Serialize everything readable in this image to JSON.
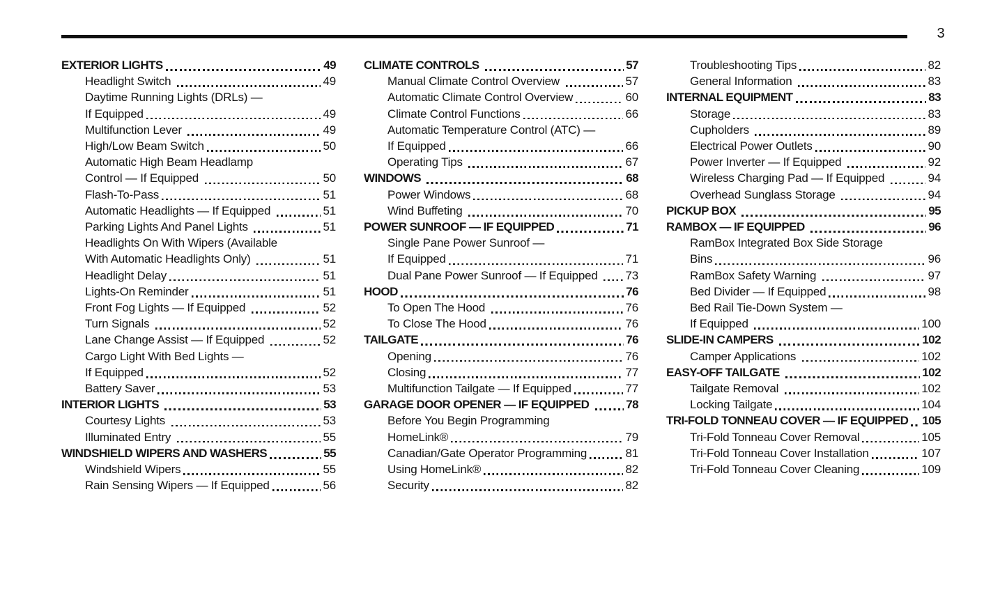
{
  "page": {
    "number": "3",
    "background_color": "#ffffff",
    "text_color": "#161616",
    "rule_color": "#111111"
  },
  "toc": {
    "columns": [
      {
        "entries": [
          {
            "style": "section",
            "text": "EXTERIOR LIGHTS",
            "page": "49"
          },
          {
            "style": "sub",
            "text": "Headlight Switch ",
            "page": "49"
          },
          {
            "style": "sub",
            "text": "Daytime Running Lights (DRLs) —",
            "page": null
          },
          {
            "style": "sub",
            "text": "If Equipped",
            "page": "49"
          },
          {
            "style": "sub",
            "text": "Multifunction Lever ",
            "page": "49"
          },
          {
            "style": "sub",
            "text": "High/Low Beam Switch",
            "page": "50"
          },
          {
            "style": "sub",
            "text": "Automatic High Beam Headlamp",
            "page": null
          },
          {
            "style": "sub",
            "text": "Control — If Equipped ",
            "page": "50"
          },
          {
            "style": "sub",
            "text": "Flash-To-Pass",
            "page": "51"
          },
          {
            "style": "sub",
            "text": "Automatic Headlights — If Equipped ",
            "page": "51"
          },
          {
            "style": "sub",
            "text": "Parking Lights And Panel Lights ",
            "page": "51"
          },
          {
            "style": "sub",
            "text": "Headlights On With Wipers (Available",
            "page": null
          },
          {
            "style": "sub",
            "text": "With Automatic Headlights Only) ",
            "page": "51"
          },
          {
            "style": "sub",
            "text": "Headlight Delay",
            "page": "51"
          },
          {
            "style": "sub",
            "text": "Lights-On Reminder",
            "page": "51"
          },
          {
            "style": "sub",
            "text": "Front Fog Lights — If Equipped ",
            "page": "52"
          },
          {
            "style": "sub",
            "text": "Turn Signals ",
            "page": "52"
          },
          {
            "style": "sub",
            "text": "Lane Change Assist — If Equipped ",
            "page": "52"
          },
          {
            "style": "sub",
            "text": "Cargo Light With Bed Lights —",
            "page": null
          },
          {
            "style": "sub",
            "text": "If Equipped",
            "page": "52"
          },
          {
            "style": "sub",
            "text": "Battery Saver",
            "page": "53"
          },
          {
            "style": "section",
            "text": "INTERIOR LIGHTS ",
            "page": "53"
          },
          {
            "style": "sub",
            "text": "Courtesy Lights ",
            "page": "53"
          },
          {
            "style": "sub",
            "text": "Illuminated Entry ",
            "page": "55"
          },
          {
            "style": "section",
            "text": "WINDSHIELD WIPERS AND WASHERS",
            "page": "55"
          },
          {
            "style": "sub",
            "text": "Windshield Wipers",
            "page": "55"
          },
          {
            "style": "sub",
            "text": "Rain Sensing Wipers — If Equipped",
            "page": "56"
          }
        ]
      },
      {
        "entries": [
          {
            "style": "section",
            "text": "CLIMATE CONTROLS ",
            "page": "57"
          },
          {
            "style": "sub",
            "text": "Manual Climate Control Overview ",
            "page": "57"
          },
          {
            "style": "sub",
            "text": "Automatic Climate Control Overview",
            "page": "60"
          },
          {
            "style": "sub",
            "text": "Climate Control Functions",
            "page": "66"
          },
          {
            "style": "sub",
            "text": "Automatic Temperature Control (ATC) —",
            "page": null
          },
          {
            "style": "sub",
            "text": "If Equipped",
            "page": "66"
          },
          {
            "style": "sub",
            "text": "Operating Tips ",
            "page": "67"
          },
          {
            "style": "section",
            "text": "WINDOWS ",
            "page": "68"
          },
          {
            "style": "sub",
            "text": "Power Windows",
            "page": "68"
          },
          {
            "style": "sub",
            "text": "Wind Buffeting ",
            "page": "70"
          },
          {
            "style": "section",
            "text": "POWER SUNROOF — IF EQUIPPED",
            "page": "71"
          },
          {
            "style": "sub",
            "text": "Single Pane Power Sunroof —",
            "page": null
          },
          {
            "style": "sub",
            "text": "If Equipped",
            "page": "71"
          },
          {
            "style": "sub",
            "text": "Dual Pane Power Sunroof — If Equipped ",
            "page": "73"
          },
          {
            "style": "section",
            "text": "HOOD",
            "page": "76"
          },
          {
            "style": "sub",
            "text": "To Open The Hood ",
            "page": "76"
          },
          {
            "style": "sub",
            "text": "To Close The Hood",
            "page": "76"
          },
          {
            "style": "section",
            "text": "TAILGATE",
            "page": "76"
          },
          {
            "style": "sub",
            "text": "Opening",
            "page": "76"
          },
          {
            "style": "sub",
            "text": "Closing",
            "page": "77"
          },
          {
            "style": "sub",
            "text": "Multifunction Tailgate — If Equipped",
            "page": "77"
          },
          {
            "style": "section",
            "text": "GARAGE DOOR OPENER — IF EQUIPPED ",
            "page": "78"
          },
          {
            "style": "sub",
            "text": "Before You Begin Programming",
            "page": null
          },
          {
            "style": "sub",
            "text": "HomeLink®",
            "page": "79"
          },
          {
            "style": "sub",
            "text": "Canadian/Gate Operator Programming",
            "page": "81"
          },
          {
            "style": "sub",
            "text": "Using HomeLink®",
            "page": "82"
          },
          {
            "style": "sub",
            "text": "Security",
            "page": "82"
          }
        ]
      },
      {
        "entries": [
          {
            "style": "sub",
            "text": "Troubleshooting Tips",
            "page": "82"
          },
          {
            "style": "sub",
            "text": "General Information ",
            "page": "83"
          },
          {
            "style": "section",
            "text": "INTERNAL EQUIPMENT",
            "page": "83"
          },
          {
            "style": "sub",
            "text": "Storage",
            "page": "83"
          },
          {
            "style": "sub",
            "text": "Cupholders ",
            "page": "89"
          },
          {
            "style": "sub",
            "text": "Electrical Power Outlets",
            "page": "90"
          },
          {
            "style": "sub",
            "text": "Power Inverter — If Equipped ",
            "page": "92"
          },
          {
            "style": "sub",
            "text": "Wireless Charging Pad — If Equipped ",
            "page": "94"
          },
          {
            "style": "sub",
            "text": "Overhead Sunglass Storage ",
            "page": "94"
          },
          {
            "style": "section",
            "text": "PICKUP BOX ",
            "page": "95"
          },
          {
            "style": "section",
            "text": "RAMBOX — IF EQUIPPED ",
            "page": "96"
          },
          {
            "style": "sub",
            "text": "RamBox Integrated Box Side Storage",
            "page": null
          },
          {
            "style": "sub",
            "text": "Bins",
            "page": "96"
          },
          {
            "style": "sub",
            "text": "RamBox Safety Warning ",
            "page": "97"
          },
          {
            "style": "sub",
            "text": "Bed Divider — If Equipped",
            "page": "98"
          },
          {
            "style": "sub",
            "text": "Bed Rail Tie-Down System —",
            "page": null
          },
          {
            "style": "sub",
            "text": "If Equipped ",
            "page": "100"
          },
          {
            "style": "section",
            "text": "SLIDE-IN CAMPERS ",
            "page": "102"
          },
          {
            "style": "sub",
            "text": "Camper Applications ",
            "page": "102"
          },
          {
            "style": "section",
            "text": "EASY-OFF TAILGATE ",
            "page": "102"
          },
          {
            "style": "sub",
            "text": "Tailgate Removal ",
            "page": "102"
          },
          {
            "style": "sub",
            "text": "Locking Tailgate",
            "page": "104"
          },
          {
            "style": "section",
            "text": "TRI-FOLD TONNEAU COVER — IF EQUIPPED",
            "page": "105"
          },
          {
            "style": "sub",
            "text": "Tri-Fold Tonneau Cover Removal",
            "page": "105"
          },
          {
            "style": "sub",
            "text": "Tri-Fold Tonneau Cover Installation",
            "page": "107"
          },
          {
            "style": "sub",
            "text": "Tri-Fold Tonneau Cover Cleaning",
            "page": "109"
          }
        ]
      }
    ]
  }
}
